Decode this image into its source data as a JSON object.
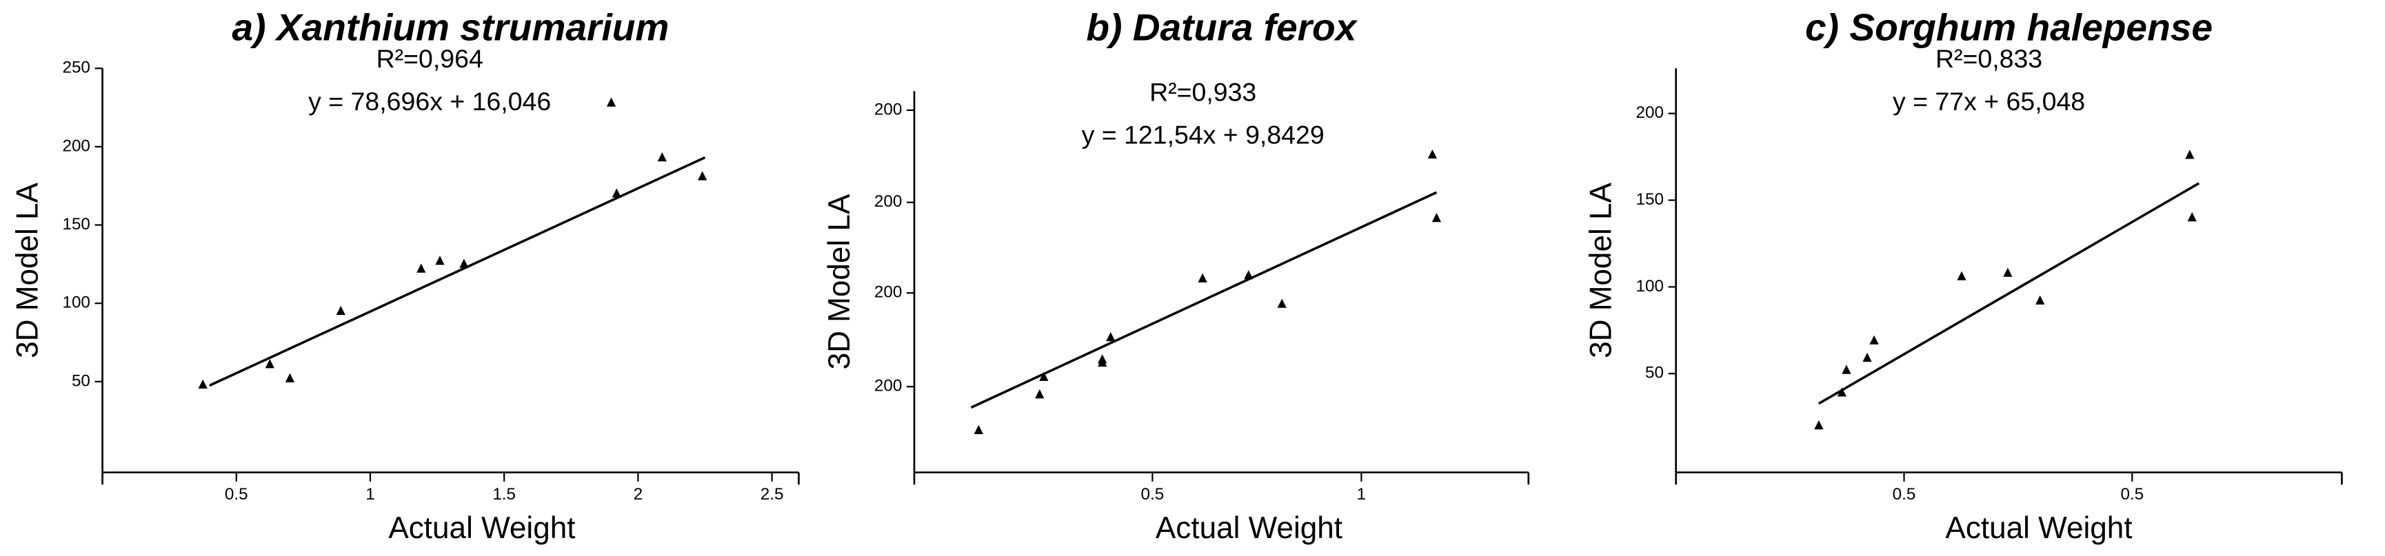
{
  "chart_data": [
    {
      "type": "scatter",
      "title": "a) Xanthium strumarium",
      "x_label": "Actual Weight",
      "y_label": "3D Model LA",
      "annotations": [
        "R²=0,964",
        "y = 78,696x + 16,046"
      ],
      "trendline": {
        "slope": 78.696,
        "intercept": 16.046,
        "x_range": [
          0.4,
          2.25
        ]
      },
      "x": [
        0.375,
        0.625,
        0.7,
        0.89,
        1.19,
        1.26,
        1.35,
        1.9,
        1.92,
        2.09,
        2.24
      ],
      "values": [
        48,
        61,
        52,
        95,
        122,
        127,
        125,
        228,
        170,
        193,
        181
      ],
      "color": "#000000",
      "xlim": [
        0,
        2.6
      ],
      "xticks": [
        0.5,
        1,
        1.5,
        2,
        2.5
      ],
      "ylim": [
        -8,
        250
      ],
      "yticks": [
        250,
        200,
        150,
        100,
        50
      ]
    },
    {
      "type": "scatter",
      "title": "b) Datura ferox",
      "x_label": "Actual Weight",
      "y_label": "3D Model LA",
      "annotations": [
        "R²=0,933",
        "y = 121,54x + 9,8429"
      ],
      "trendline": {
        "slope": 121.54,
        "intercept": 9.8429,
        "x_range": [
          0.066,
          1.18
        ]
      },
      "x": [
        0.084,
        0.23,
        0.24,
        0.38,
        0.38,
        0.4,
        0.62,
        0.73,
        0.81,
        1.17,
        1.18
      ],
      "values": [
        3.5,
        26,
        37,
        46,
        48,
        62,
        99,
        101,
        83,
        177,
        137
      ],
      "color": "#000000",
      "xlim": [
        -0.07,
        1.4
      ],
      "xticks": [
        0.5,
        1
      ],
      "ylim": [
        -23,
        217
      ],
      "yticks": [
        {
          "value": 205,
          "label": "200"
        },
        {
          "value": 147,
          "label": "200"
        },
        {
          "value": 90,
          "label": "200"
        },
        {
          "value": 31,
          "label": "200"
        }
      ]
    },
    {
      "type": "scatter",
      "title": "c) Sorghum halepense",
      "x_label": "Actual Weight",
      "y_label": "3D Model LA",
      "annotations": [
        "R²=0,833",
        "y = 77x + 65,048"
      ],
      "trendline": {
        "slope": 77,
        "intercept": 65.048,
        "x_range": [
          -0.42,
          1.23
        ]
      },
      "x": [
        -0.42,
        -0.32,
        -0.3,
        -0.21,
        -0.18,
        0.2,
        0.4,
        0.54,
        1.19,
        1.2
      ],
      "values": [
        20,
        39,
        52,
        59,
        69,
        106,
        108,
        92,
        176,
        140
      ],
      "color": "#000000",
      "xlim": [
        -1.04,
        1.85
      ],
      "xticks": [
        {
          "value": -0.05,
          "label": "0.5"
        },
        {
          "value": 0.94,
          "label": "0.5"
        }
      ],
      "ylim": [
        -7,
        226
      ],
      "yticks": [
        200,
        150,
        100,
        50
      ]
    }
  ]
}
